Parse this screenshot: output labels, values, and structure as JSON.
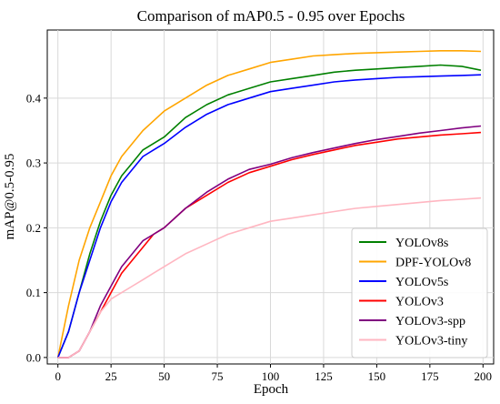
{
  "chart_data": {
    "type": "line",
    "title": "Comparison of mAP0.5 - 0.95 over Epochs",
    "xlabel": "Epoch",
    "ylabel": "mAP@0.5-0.95",
    "xlim": [
      -5,
      205
    ],
    "ylim": [
      -0.01,
      0.505
    ],
    "xticks": [
      0,
      25,
      50,
      75,
      100,
      125,
      150,
      175,
      200
    ],
    "yticks": [
      0.0,
      0.1,
      0.2,
      0.3,
      0.4
    ],
    "xtick_labels": [
      "0",
      "25",
      "50",
      "75",
      "100",
      "125",
      "150",
      "175",
      "200"
    ],
    "ytick_labels": [
      "0.0",
      "0.1",
      "0.2",
      "0.3",
      "0.4"
    ],
    "grid": true,
    "legend_position": "lower-right",
    "x": [
      0,
      5,
      10,
      15,
      20,
      25,
      30,
      35,
      40,
      45,
      50,
      60,
      70,
      80,
      90,
      100,
      110,
      120,
      130,
      140,
      150,
      160,
      170,
      180,
      190,
      199
    ],
    "series": [
      {
        "name": "YOLOv8s",
        "color": "#008000",
        "values": [
          0.0,
          0.04,
          0.1,
          0.16,
          0.21,
          0.25,
          0.28,
          0.3,
          0.32,
          0.33,
          0.34,
          0.37,
          0.39,
          0.405,
          0.415,
          0.425,
          0.43,
          0.435,
          0.44,
          0.443,
          0.445,
          0.447,
          0.449,
          0.451,
          0.449,
          0.443
        ]
      },
      {
        "name": "DPF-YOLOv8",
        "color": "#FFA500",
        "values": [
          0.0,
          0.08,
          0.15,
          0.2,
          0.24,
          0.28,
          0.31,
          0.33,
          0.35,
          0.365,
          0.38,
          0.4,
          0.42,
          0.435,
          0.445,
          0.455,
          0.46,
          0.465,
          0.467,
          0.469,
          0.47,
          0.471,
          0.472,
          0.473,
          0.473,
          0.472
        ]
      },
      {
        "name": "YOLOv5s",
        "color": "#0000FF",
        "values": [
          0.0,
          0.04,
          0.1,
          0.15,
          0.2,
          0.24,
          0.27,
          0.29,
          0.31,
          0.32,
          0.33,
          0.355,
          0.375,
          0.39,
          0.4,
          0.41,
          0.415,
          0.42,
          0.425,
          0.428,
          0.43,
          0.432,
          0.433,
          0.434,
          0.435,
          0.436
        ]
      },
      {
        "name": "YOLOv3",
        "color": "#FF0000",
        "values": [
          0.0,
          0.0,
          0.01,
          0.04,
          0.07,
          0.1,
          0.13,
          0.15,
          0.17,
          0.19,
          0.2,
          0.23,
          0.25,
          0.27,
          0.285,
          0.295,
          0.305,
          0.313,
          0.32,
          0.327,
          0.332,
          0.337,
          0.34,
          0.343,
          0.345,
          0.347
        ]
      },
      {
        "name": "YOLOv3-spp",
        "color": "#800080",
        "values": [
          0.0,
          0.0,
          0.01,
          0.04,
          0.08,
          0.11,
          0.14,
          0.16,
          0.18,
          0.19,
          0.2,
          0.23,
          0.255,
          0.275,
          0.29,
          0.298,
          0.308,
          0.316,
          0.323,
          0.33,
          0.336,
          0.341,
          0.346,
          0.35,
          0.354,
          0.357
        ]
      },
      {
        "name": "YOLOv3-tiny",
        "color": "#FFB6C1",
        "values": [
          0.0,
          0.0,
          0.01,
          0.04,
          0.07,
          0.09,
          0.1,
          0.11,
          0.12,
          0.13,
          0.14,
          0.16,
          0.175,
          0.19,
          0.2,
          0.21,
          0.215,
          0.22,
          0.225,
          0.23,
          0.233,
          0.236,
          0.239,
          0.242,
          0.244,
          0.246
        ]
      }
    ]
  }
}
